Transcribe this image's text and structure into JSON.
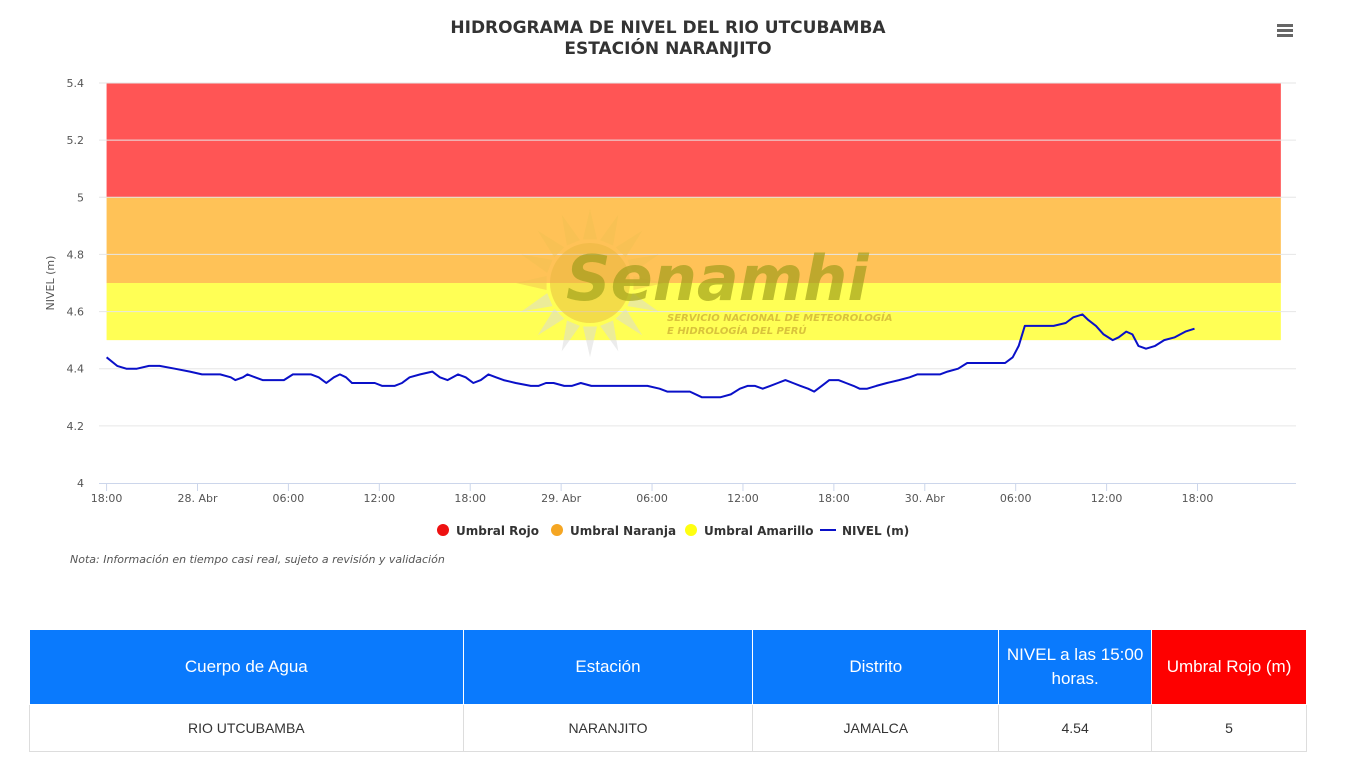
{
  "menu": {
    "icon": "hamburger-menu-icon"
  },
  "watermark": {
    "brand": "Senamhi",
    "line1": "SERVICIO NACIONAL DE METEOROLOGÍA",
    "line2": "E HIDROLOGÍA DEL PERÚ"
  },
  "note": "Nota: Información en tiempo casi real, sujeto a revisión y validación",
  "chart_data": {
    "type": "line",
    "title": "HIDROGRAMA DE NIVEL DEL RIO UTCUBAMBA",
    "subtitle": "ESTACIÓN NARANJITO",
    "ylabel": "NIVEL (m)",
    "ylim": [
      4,
      5.4
    ],
    "yticks": [
      4,
      4.2,
      4.4,
      4.6,
      4.8,
      5,
      5.2,
      5.4
    ],
    "ytick_labels": [
      "4",
      "4.2",
      "4.4",
      "4.6",
      "4.8",
      "5",
      "5.2",
      "5.4"
    ],
    "x_unit": "hours from 27 Abr 18:00",
    "xlim": [
      -0.5,
      78.5
    ],
    "xticks": [
      {
        "t": 0,
        "label": "18:00"
      },
      {
        "t": 6,
        "label": "28. Abr"
      },
      {
        "t": 12,
        "label": "06:00"
      },
      {
        "t": 18,
        "label": "12:00"
      },
      {
        "t": 24,
        "label": "18:00"
      },
      {
        "t": 30,
        "label": "29. Abr"
      },
      {
        "t": 36,
        "label": "06:00"
      },
      {
        "t": 42,
        "label": "12:00"
      },
      {
        "t": 48,
        "label": "18:00"
      },
      {
        "t": 54,
        "label": "30. Abr"
      },
      {
        "t": 60,
        "label": "06:00"
      },
      {
        "t": 66,
        "label": "12:00"
      },
      {
        "t": 72,
        "label": "18:00"
      }
    ],
    "bands": [
      {
        "name": "Umbral Amarillo",
        "from": 4.5,
        "to": 4.7,
        "color": "#ffff55"
      },
      {
        "name": "Umbral Naranja",
        "from": 4.7,
        "to": 5.0,
        "color": "#ffc257"
      },
      {
        "name": "Umbral Rojo",
        "from": 5.0,
        "to": 5.4,
        "color": "#ff5555"
      }
    ],
    "legend": [
      {
        "name": "Umbral Rojo",
        "color": "#ee1111",
        "symbol": "dot"
      },
      {
        "name": "Umbral Naranja",
        "color": "#f5a623",
        "symbol": "dot"
      },
      {
        "name": "Umbral Amarillo",
        "color": "#ffff11",
        "symbol": "dot"
      },
      {
        "name": "NIVEL (m)",
        "color": "#0a10c8",
        "symbol": "line"
      }
    ],
    "series": [
      {
        "name": "NIVEL (m)",
        "color": "#0a10c8",
        "points": [
          [
            0,
            4.44
          ],
          [
            0.7,
            4.41
          ],
          [
            1.3,
            4.4
          ],
          [
            2,
            4.4
          ],
          [
            2.8,
            4.41
          ],
          [
            3.5,
            4.41
          ],
          [
            4.5,
            4.4
          ],
          [
            5.5,
            4.39
          ],
          [
            6.3,
            4.38
          ],
          [
            7.5,
            4.38
          ],
          [
            8.2,
            4.37
          ],
          [
            8.5,
            4.36
          ],
          [
            9,
            4.37
          ],
          [
            9.3,
            4.38
          ],
          [
            9.8,
            4.37
          ],
          [
            10.3,
            4.36
          ],
          [
            11,
            4.36
          ],
          [
            11.7,
            4.36
          ],
          [
            12.3,
            4.38
          ],
          [
            13.5,
            4.38
          ],
          [
            14,
            4.37
          ],
          [
            14.5,
            4.35
          ],
          [
            15,
            4.37
          ],
          [
            15.4,
            4.38
          ],
          [
            15.8,
            4.37
          ],
          [
            16.2,
            4.35
          ],
          [
            17,
            4.35
          ],
          [
            17.7,
            4.35
          ],
          [
            18.2,
            4.34
          ],
          [
            19,
            4.34
          ],
          [
            19.5,
            4.35
          ],
          [
            20,
            4.37
          ],
          [
            20.7,
            4.38
          ],
          [
            21.5,
            4.39
          ],
          [
            22,
            4.37
          ],
          [
            22.5,
            4.36
          ],
          [
            23.2,
            4.38
          ],
          [
            23.7,
            4.37
          ],
          [
            24.2,
            4.35
          ],
          [
            24.7,
            4.36
          ],
          [
            25.2,
            4.38
          ],
          [
            25.7,
            4.37
          ],
          [
            26.2,
            4.36
          ],
          [
            27,
            4.35
          ],
          [
            28,
            4.34
          ],
          [
            28.5,
            4.34
          ],
          [
            29,
            4.35
          ],
          [
            29.5,
            4.35
          ],
          [
            30.2,
            4.34
          ],
          [
            30.7,
            4.34
          ],
          [
            31.3,
            4.35
          ],
          [
            32,
            4.34
          ],
          [
            33,
            4.34
          ],
          [
            34,
            4.34
          ],
          [
            35,
            4.34
          ],
          [
            35.7,
            4.34
          ],
          [
            36.5,
            4.33
          ],
          [
            37,
            4.32
          ],
          [
            37.5,
            4.32
          ],
          [
            38,
            4.32
          ],
          [
            38.5,
            4.32
          ],
          [
            39.3,
            4.3
          ],
          [
            40,
            4.3
          ],
          [
            40.5,
            4.3
          ],
          [
            41.2,
            4.31
          ],
          [
            41.8,
            4.33
          ],
          [
            42.3,
            4.34
          ],
          [
            42.8,
            4.34
          ],
          [
            43.3,
            4.33
          ],
          [
            43.8,
            4.34
          ],
          [
            44.3,
            4.35
          ],
          [
            44.8,
            4.36
          ],
          [
            45.3,
            4.35
          ],
          [
            45.8,
            4.34
          ],
          [
            46.3,
            4.33
          ],
          [
            46.7,
            4.32
          ],
          [
            47.2,
            4.34
          ],
          [
            47.7,
            4.36
          ],
          [
            48.3,
            4.36
          ],
          [
            48.8,
            4.35
          ],
          [
            49.3,
            4.34
          ],
          [
            49.7,
            4.33
          ],
          [
            50.2,
            4.33
          ],
          [
            50.8,
            4.34
          ],
          [
            51.5,
            4.35
          ],
          [
            52.3,
            4.36
          ],
          [
            53,
            4.37
          ],
          [
            53.5,
            4.38
          ],
          [
            54.3,
            4.38
          ],
          [
            55,
            4.38
          ],
          [
            55.5,
            4.39
          ],
          [
            56.2,
            4.4
          ],
          [
            56.8,
            4.42
          ],
          [
            57.5,
            4.42
          ],
          [
            58.5,
            4.42
          ],
          [
            59.3,
            4.42
          ],
          [
            59.8,
            4.44
          ],
          [
            60.2,
            4.48
          ],
          [
            60.6,
            4.55
          ],
          [
            61,
            4.55
          ],
          [
            61.8,
            4.55
          ],
          [
            62.5,
            4.55
          ],
          [
            63.3,
            4.56
          ],
          [
            63.8,
            4.58
          ],
          [
            64.4,
            4.59
          ],
          [
            64.8,
            4.57
          ],
          [
            65.3,
            4.55
          ],
          [
            65.8,
            4.52
          ],
          [
            66.4,
            4.5
          ],
          [
            66.8,
            4.51
          ],
          [
            67.3,
            4.53
          ],
          [
            67.7,
            4.52
          ],
          [
            68.1,
            4.48
          ],
          [
            68.6,
            4.47
          ],
          [
            69.2,
            4.48
          ],
          [
            69.8,
            4.5
          ],
          [
            70.5,
            4.51
          ],
          [
            71.2,
            4.53
          ],
          [
            71.8,
            4.54
          ]
        ]
      }
    ]
  },
  "table": {
    "headers": [
      {
        "label": "Cuerpo de Agua",
        "color": "#0a7afd"
      },
      {
        "label": "Estación",
        "color": "#0a7afd"
      },
      {
        "label": "Distrito",
        "color": "#0a7afd"
      },
      {
        "label": "NIVEL a las 15:00 horas.",
        "color": "#0a7afd"
      },
      {
        "label": "Umbral Rojo (m)",
        "color": "#fe0000"
      }
    ],
    "rows": [
      [
        "RIO UTCUBAMBA",
        "NARANJITO",
        "JAMALCA",
        "4.54",
        "5"
      ]
    ]
  }
}
